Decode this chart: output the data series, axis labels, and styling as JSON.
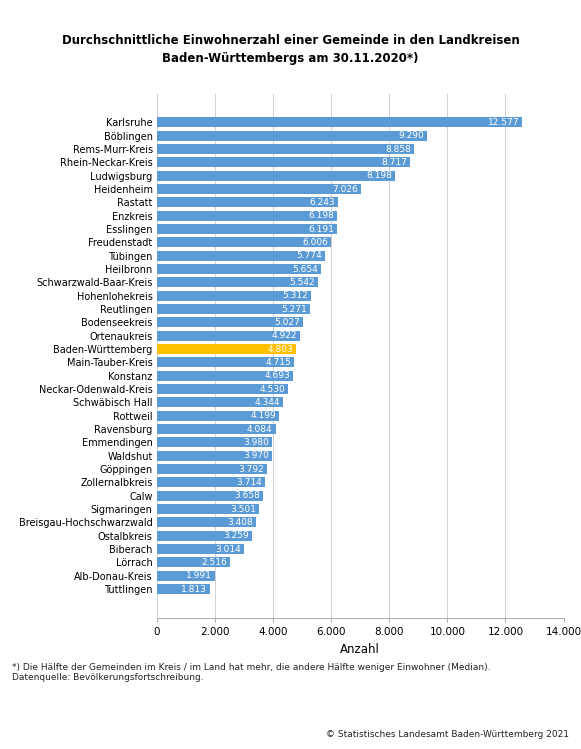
{
  "title_line1": "Durchschnittliche Einwohnerzahl einer Gemeinde in den Landkreisen",
  "title_line2": "Baden-Württembergs am 30.11.2020*)",
  "xlabel": "Anzahl",
  "xlim": [
    0,
    14000
  ],
  "xticks": [
    0,
    2000,
    4000,
    6000,
    8000,
    10000,
    12000,
    14000
  ],
  "xtick_labels": [
    "0",
    "2.000",
    "4.000",
    "6.000",
    "8.000",
    "10.000",
    "12.000",
    "14.000"
  ],
  "footnote_left": "*) Die Hälfte der Gemeinden im Kreis / im Land hat mehr, die andere Hälfte weniger Einwohner (Median).\nDatenquelle: Bevölkerungsfortschreibung.",
  "footnote_right": "© Statistisches Landesamt Baden-Württemberg 2021",
  "bar_color": "#5b9bd5",
  "highlight_color": "#ffc000",
  "background_color": "#ffffff",
  "grid_color": "#d0d0d0",
  "categories": [
    "Karlsruhe",
    "Böblingen",
    "Rems-Murr-Kreis",
    "Rhein-Neckar-Kreis",
    "Ludwigsburg",
    "Heidenheim",
    "Rastatt",
    "Enzkreis",
    "Esslingen",
    "Freudenstadt",
    "Tübingen",
    "Heilbronn",
    "Schwarzwald-Baar-Kreis",
    "Hohenlohekreis",
    "Reutlingen",
    "Bodenseekreis",
    "Ortenaukreis",
    "Baden-Württemberg",
    "Main-Tauber-Kreis",
    "Konstanz",
    "Neckar-Odenwald-Kreis",
    "Schwäbisch Hall",
    "Rottweil",
    "Ravensburg",
    "Emmendingen",
    "Waldshut",
    "Göppingen",
    "Zollernalbkreis",
    "Calw",
    "Sigmaringen",
    "Breisgau-Hochschwarzwald",
    "Ostalbkreis",
    "Biberach",
    "Lörrach",
    "Alb-Donau-Kreis",
    "Tuttlingen"
  ],
  "values": [
    12577,
    9290,
    8858,
    8717,
    8198,
    7026,
    6243,
    6198,
    6191,
    6006,
    5774,
    5654,
    5542,
    5312,
    5271,
    5027,
    4922,
    4803,
    4715,
    4693,
    4530,
    4344,
    4199,
    4084,
    3980,
    3970,
    3792,
    3714,
    3658,
    3501,
    3408,
    3259,
    3014,
    2516,
    1991,
    1813
  ],
  "highlight_index": 17,
  "value_labels": [
    "12.577",
    "9.290",
    "8.858",
    "8.717",
    "8.198",
    "7.026",
    "6.243",
    "6.198",
    "6.191",
    "6.006",
    "5.774",
    "5.654",
    "5.542",
    "5.312",
    "5.271",
    "5.027",
    "4.922",
    "4.803",
    "4.715",
    "4.693",
    "4.530",
    "4.344",
    "4.199",
    "4.084",
    "3.980",
    "3.970",
    "3.792",
    "3.714",
    "3.658",
    "3.501",
    "3.408",
    "3.259",
    "3.014",
    "2.516",
    "1.991",
    "1.813"
  ]
}
